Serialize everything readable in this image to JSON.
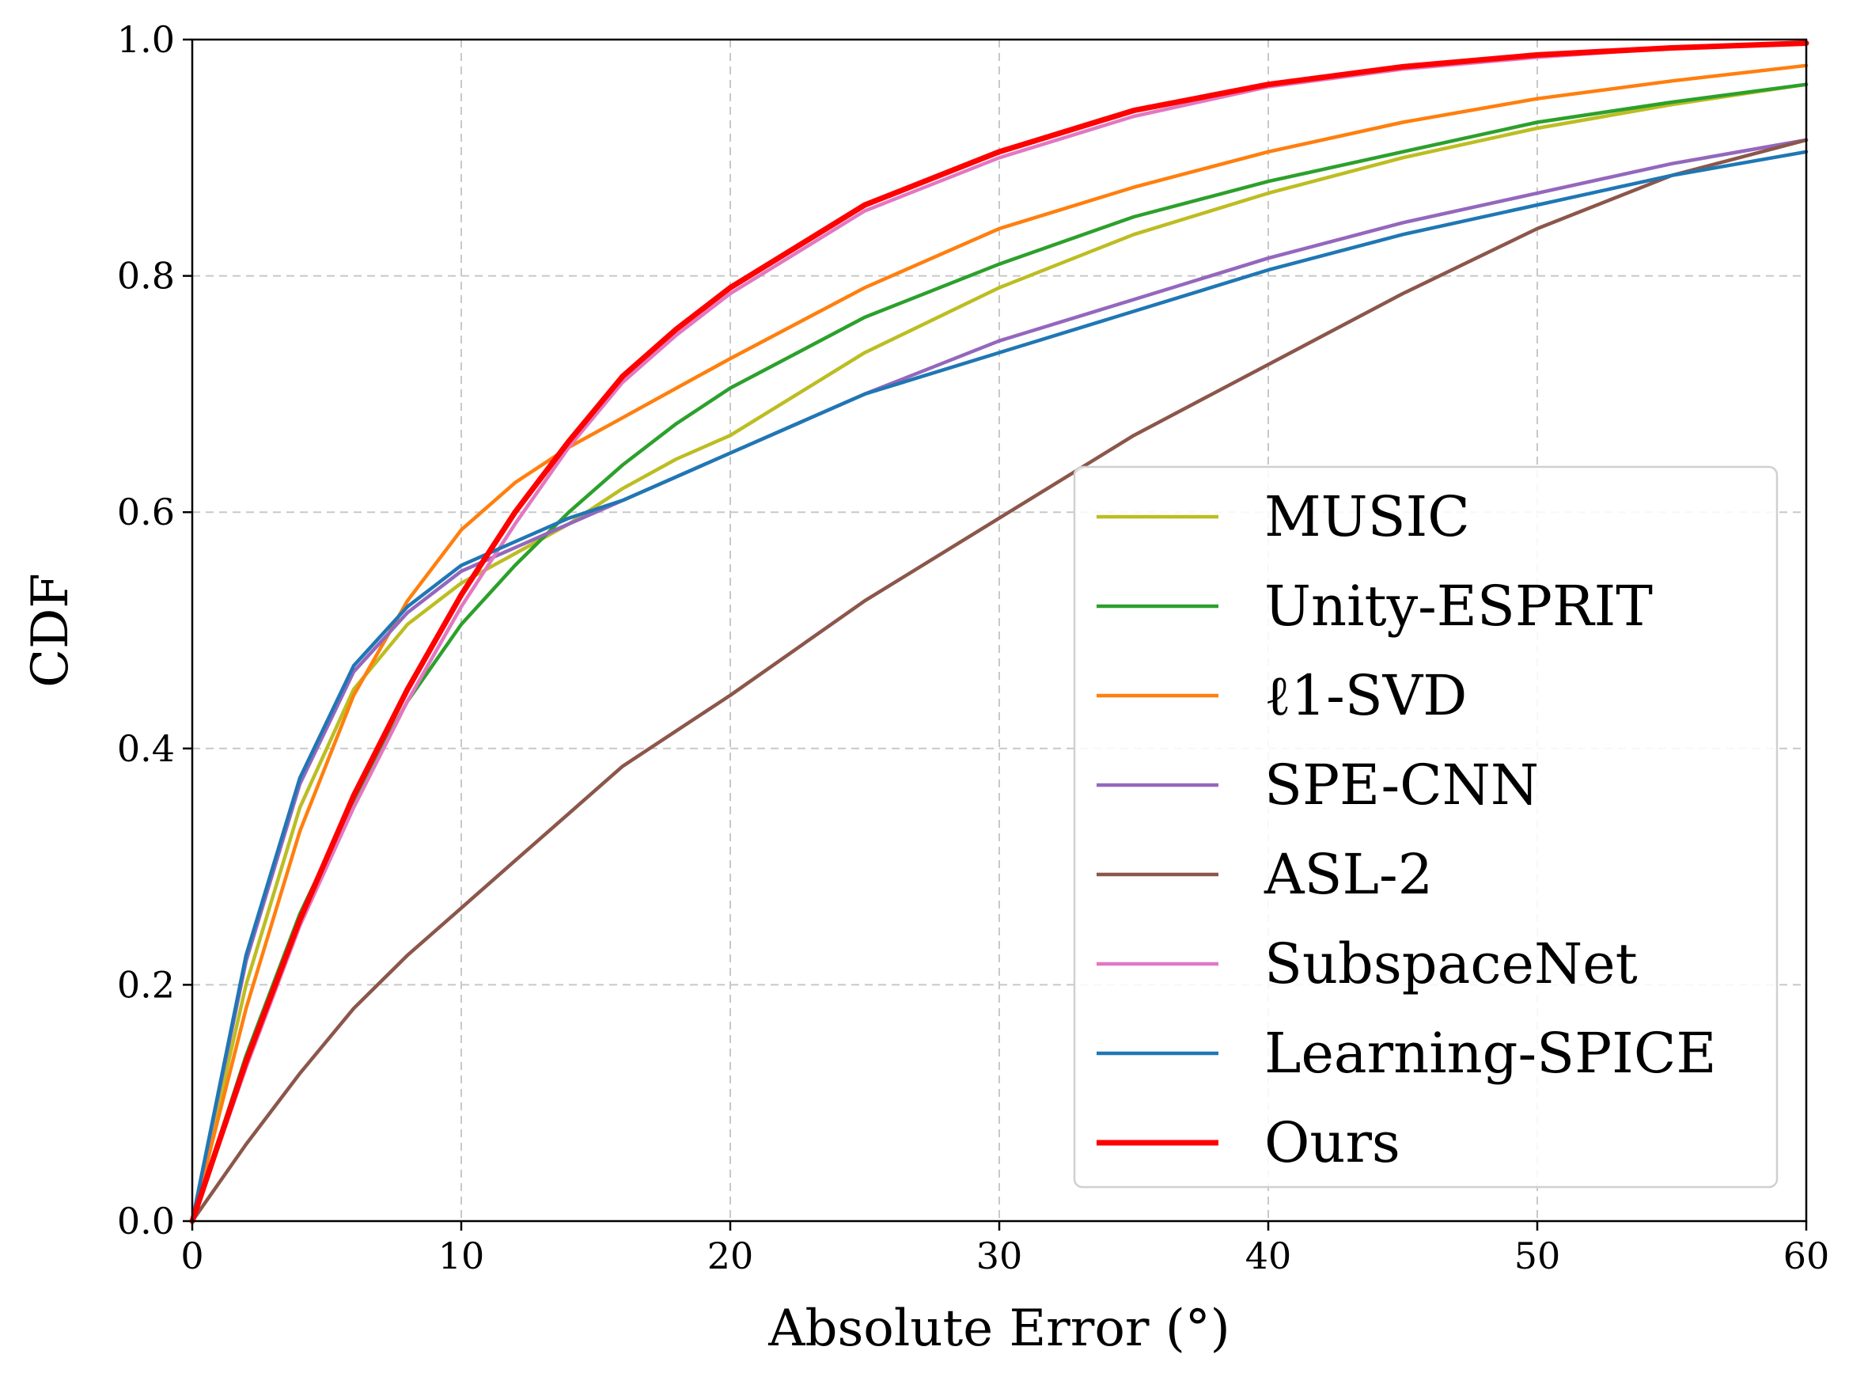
{
  "chart_data": {
    "type": "line",
    "title": "",
    "xlabel": "Absolute Error (°)",
    "ylabel": "CDF",
    "xlim": [
      0,
      60
    ],
    "ylim": [
      0,
      1
    ],
    "xticks": [
      0,
      10,
      20,
      30,
      40,
      50,
      60
    ],
    "xtick_labels": [
      "0",
      "10",
      "20",
      "30",
      "40",
      "50",
      "60"
    ],
    "yticks": [
      0,
      0.2,
      0.4,
      0.6,
      0.8,
      1.0
    ],
    "ytick_labels": [
      "0.0",
      "0.2",
      "0.4",
      "0.6",
      "0.8",
      "1.0"
    ],
    "grid": true,
    "legend_position": "lower-right",
    "series": [
      {
        "name": "MUSIC",
        "color": "#bcbd22",
        "x": [
          0,
          2,
          4,
          6,
          8,
          10,
          12,
          14,
          16,
          18,
          20,
          25,
          30,
          35,
          40,
          45,
          50,
          55,
          60
        ],
        "y": [
          0,
          0.2,
          0.35,
          0.45,
          0.505,
          0.54,
          0.565,
          0.59,
          0.62,
          0.645,
          0.665,
          0.735,
          0.79,
          0.835,
          0.87,
          0.9,
          0.925,
          0.945,
          0.962
        ]
      },
      {
        "name": "Unity-ESPRIT",
        "color": "#2ca02c",
        "x": [
          0,
          2,
          4,
          6,
          8,
          10,
          12,
          14,
          16,
          18,
          20,
          25,
          30,
          35,
          40,
          45,
          50,
          55,
          60
        ],
        "y": [
          0,
          0.14,
          0.26,
          0.355,
          0.44,
          0.505,
          0.555,
          0.6,
          0.64,
          0.675,
          0.705,
          0.765,
          0.81,
          0.85,
          0.88,
          0.905,
          0.93,
          0.947,
          0.962
        ]
      },
      {
        "name": "ℓ1-SVD",
        "color": "#ff7f0e",
        "x": [
          0,
          2,
          4,
          6,
          8,
          10,
          12,
          14,
          16,
          18,
          20,
          25,
          30,
          35,
          40,
          45,
          50,
          55,
          60
        ],
        "y": [
          0,
          0.18,
          0.33,
          0.445,
          0.525,
          0.585,
          0.625,
          0.655,
          0.68,
          0.705,
          0.73,
          0.79,
          0.84,
          0.875,
          0.905,
          0.93,
          0.95,
          0.965,
          0.978
        ]
      },
      {
        "name": "SPE-CNN",
        "color": "#9467bd",
        "x": [
          0,
          2,
          4,
          6,
          8,
          10,
          12,
          14,
          16,
          18,
          20,
          25,
          30,
          35,
          40,
          45,
          50,
          55,
          60
        ],
        "y": [
          0,
          0.22,
          0.37,
          0.465,
          0.515,
          0.55,
          0.57,
          0.59,
          0.61,
          0.63,
          0.65,
          0.7,
          0.745,
          0.78,
          0.815,
          0.845,
          0.87,
          0.895,
          0.915
        ]
      },
      {
        "name": "ASL-2",
        "color": "#8c564b",
        "x": [
          0,
          2,
          4,
          6,
          8,
          10,
          12,
          14,
          16,
          18,
          20,
          25,
          30,
          35,
          40,
          45,
          50,
          55,
          60
        ],
        "y": [
          0,
          0.065,
          0.125,
          0.18,
          0.225,
          0.265,
          0.305,
          0.345,
          0.385,
          0.415,
          0.445,
          0.525,
          0.595,
          0.665,
          0.725,
          0.785,
          0.84,
          0.885,
          0.915
        ]
      },
      {
        "name": "SubspaceNet",
        "color": "#e377c2",
        "x": [
          0,
          2,
          4,
          6,
          8,
          10,
          12,
          14,
          16,
          18,
          20,
          25,
          30,
          35,
          40,
          45,
          50,
          55,
          60
        ],
        "y": [
          0,
          0.13,
          0.25,
          0.35,
          0.44,
          0.52,
          0.59,
          0.655,
          0.71,
          0.75,
          0.785,
          0.855,
          0.9,
          0.935,
          0.96,
          0.975,
          0.985,
          0.993,
          0.997
        ]
      },
      {
        "name": "Learning-SPICE",
        "color": "#1f77b4",
        "x": [
          0,
          2,
          4,
          6,
          8,
          10,
          12,
          14,
          16,
          18,
          20,
          25,
          30,
          35,
          40,
          45,
          50,
          55,
          60
        ],
        "y": [
          0,
          0.225,
          0.375,
          0.47,
          0.52,
          0.555,
          0.575,
          0.595,
          0.61,
          0.63,
          0.65,
          0.7,
          0.735,
          0.77,
          0.805,
          0.835,
          0.86,
          0.885,
          0.905
        ]
      },
      {
        "name": "Ours",
        "color": "#ff0000",
        "x": [
          0,
          2,
          4,
          6,
          8,
          10,
          12,
          14,
          16,
          18,
          20,
          25,
          30,
          35,
          40,
          45,
          50,
          55,
          60
        ],
        "y": [
          0,
          0.135,
          0.255,
          0.36,
          0.45,
          0.53,
          0.6,
          0.66,
          0.715,
          0.755,
          0.79,
          0.86,
          0.905,
          0.94,
          0.962,
          0.977,
          0.987,
          0.993,
          0.997
        ]
      }
    ]
  }
}
